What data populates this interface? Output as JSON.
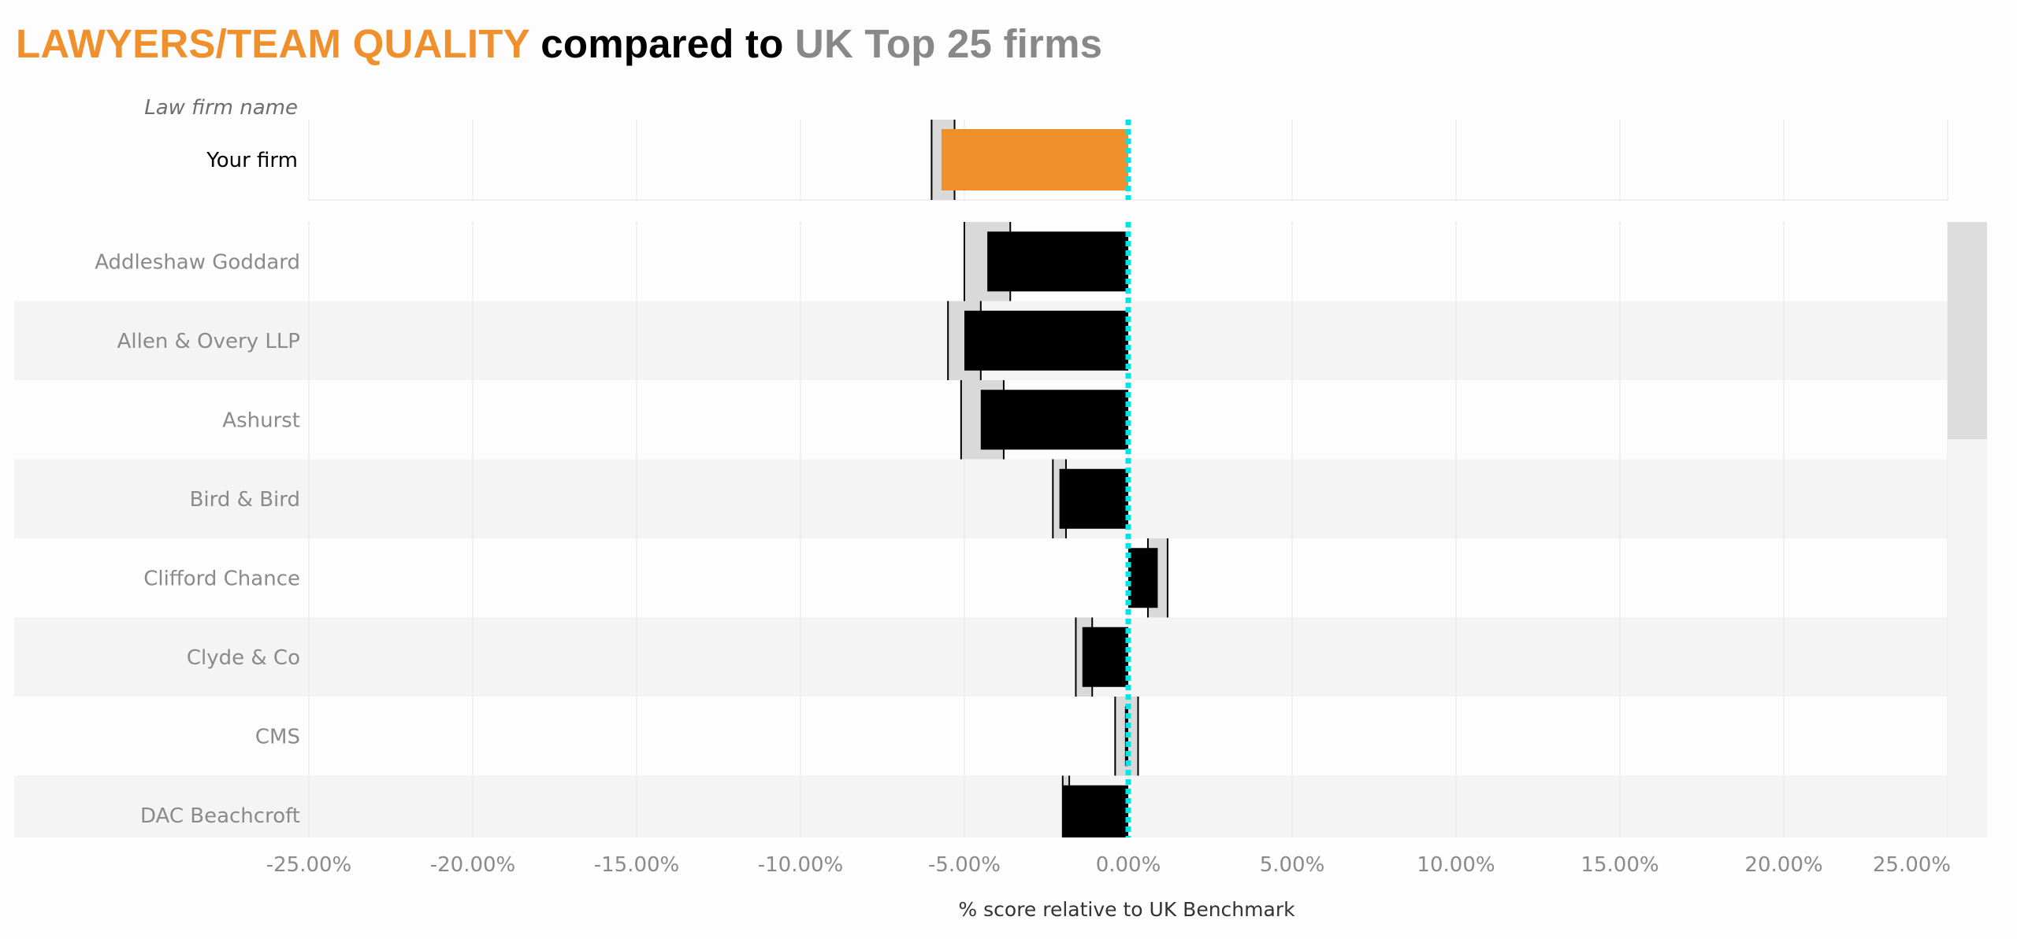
{
  "title": {
    "part1": "LAWYERS/TEAM QUALITY",
    "part2": " compared to ",
    "part3": "UK Top 25 firms"
  },
  "colors": {
    "highlight": "#f0902d",
    "firm_bars": "#000000",
    "band": "#d9d9d9",
    "benchmark_line": "#00e5e5",
    "row_stripe": "#f4f4f4"
  },
  "chart_data": {
    "type": "bar",
    "orientation": "horizontal",
    "row_header": "Law firm name",
    "xlabel": "% score relative to UK Benchmark",
    "xlim": [
      -25,
      25
    ],
    "x_ticks": [
      "-25.00%",
      "-20.00%",
      "-15.00%",
      "-10.00%",
      "-5.00%",
      "0.00%",
      "5.00%",
      "10.00%",
      "15.00%",
      "20.00%",
      "25.00%"
    ],
    "x_tick_values": [
      -25,
      -20,
      -15,
      -10,
      -5,
      0,
      5,
      10,
      15,
      20,
      25
    ],
    "benchmark": 0,
    "grid": true,
    "highlight": {
      "label": "Your firm",
      "value": -5.7,
      "range": [
        -6.0,
        -5.3
      ]
    },
    "categories": [
      "Addleshaw Goddard",
      "Allen & Overy LLP",
      "Ashurst",
      "Bird & Bird",
      "Clifford Chance",
      "Clyde & Co",
      "CMS",
      "DAC Beachcroft"
    ],
    "values": [
      -4.3,
      -5.0,
      -4.5,
      -2.1,
      0.9,
      -1.4,
      -0.1,
      -2.0
    ],
    "ranges": [
      [
        -5.0,
        -3.6
      ],
      [
        -5.5,
        -4.5
      ],
      [
        -5.1,
        -3.8
      ],
      [
        -2.3,
        -1.9
      ],
      [
        0.6,
        1.2
      ],
      [
        -1.6,
        -1.1
      ],
      [
        -0.4,
        0.3
      ],
      [
        -2.0,
        -1.8
      ]
    ]
  }
}
